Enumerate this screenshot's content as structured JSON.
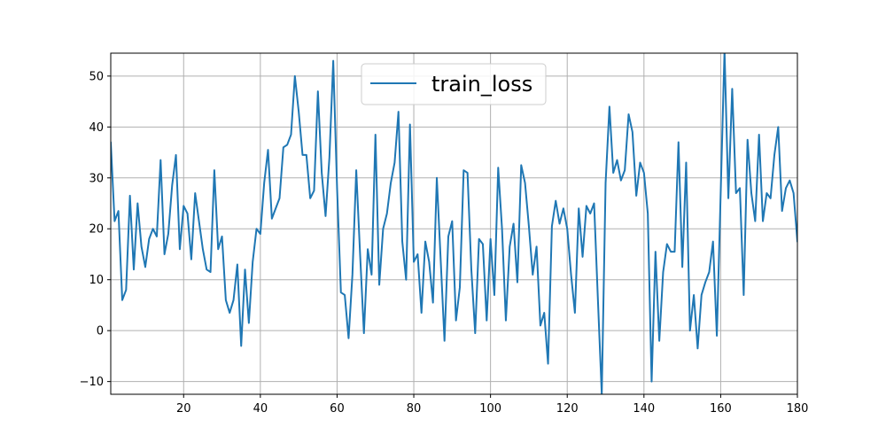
{
  "chart_data": {
    "type": "line",
    "title": "",
    "xlabel": "",
    "ylabel": "",
    "xlim": [
      1,
      180
    ],
    "ylim": [
      -12.5,
      54.5
    ],
    "xticks": [
      20,
      40,
      60,
      80,
      100,
      120,
      140,
      160,
      180
    ],
    "yticks": [
      -10,
      0,
      10,
      20,
      30,
      40,
      50
    ],
    "grid": true,
    "legend_position": "top-center",
    "colors": {
      "series": "#1f77b4",
      "grid": "#b0b0b0"
    },
    "series": [
      {
        "name": "train_loss",
        "x_start": 1,
        "x_step": 1,
        "values": [
          37.0,
          21.5,
          23.5,
          6.0,
          8.0,
          26.5,
          12.0,
          25.0,
          16.5,
          12.5,
          18.0,
          20.0,
          18.5,
          33.5,
          15.0,
          19.0,
          28.5,
          34.5,
          16.0,
          24.5,
          23.0,
          14.0,
          27.0,
          21.5,
          16.0,
          12.0,
          11.5,
          31.5,
          16.0,
          18.5,
          6.0,
          3.5,
          6.0,
          13.0,
          -3.0,
          12.0,
          1.5,
          13.5,
          20.0,
          19.0,
          29.0,
          35.5,
          22.0,
          24.0,
          26.0,
          36.0,
          36.5,
          38.5,
          50.0,
          43.0,
          34.5,
          34.5,
          26.0,
          27.5,
          47.0,
          31.0,
          22.5,
          34.0,
          53.0,
          28.0,
          7.5,
          7.0,
          -1.5,
          11.0,
          31.5,
          15.0,
          -0.5,
          16.0,
          11.0,
          38.5,
          9.0,
          20.0,
          23.0,
          29.0,
          33.0,
          43.0,
          17.5,
          10.0,
          40.5,
          13.5,
          15.0,
          3.5,
          17.5,
          13.5,
          5.5,
          30.0,
          14.0,
          -2.0,
          18.5,
          21.5,
          2.0,
          8.5,
          31.5,
          31.0,
          12.0,
          -0.5,
          18.0,
          17.0,
          2.0,
          18.0,
          7.0,
          32.0,
          20.0,
          2.0,
          16.5,
          21.0,
          9.5,
          32.5,
          29.0,
          20.5,
          11.0,
          16.5,
          1.0,
          3.5,
          -6.5,
          20.5,
          25.5,
          21.0,
          24.0,
          20.0,
          11.0,
          3.5,
          24.0,
          14.5,
          24.5,
          23.0,
          25.0,
          6.0,
          -12.5,
          29.0,
          44.0,
          31.0,
          33.5,
          29.5,
          31.5,
          42.5,
          39.0,
          26.5,
          33.0,
          31.0,
          23.0,
          -10.0,
          15.5,
          -2.0,
          11.5,
          17.0,
          15.5,
          15.5,
          37.0,
          12.5,
          33.0,
          0.0,
          7.0,
          -3.5,
          7.0,
          9.5,
          11.5,
          17.5,
          -1.0,
          27.0,
          55.0,
          26.0,
          47.5,
          27.0,
          28.0,
          7.0,
          37.5,
          27.0,
          21.5,
          38.5,
          21.5,
          27.0,
          26.0,
          34.5,
          40.0,
          23.5,
          28.0,
          29.5,
          27.0,
          17.5
        ]
      }
    ]
  }
}
